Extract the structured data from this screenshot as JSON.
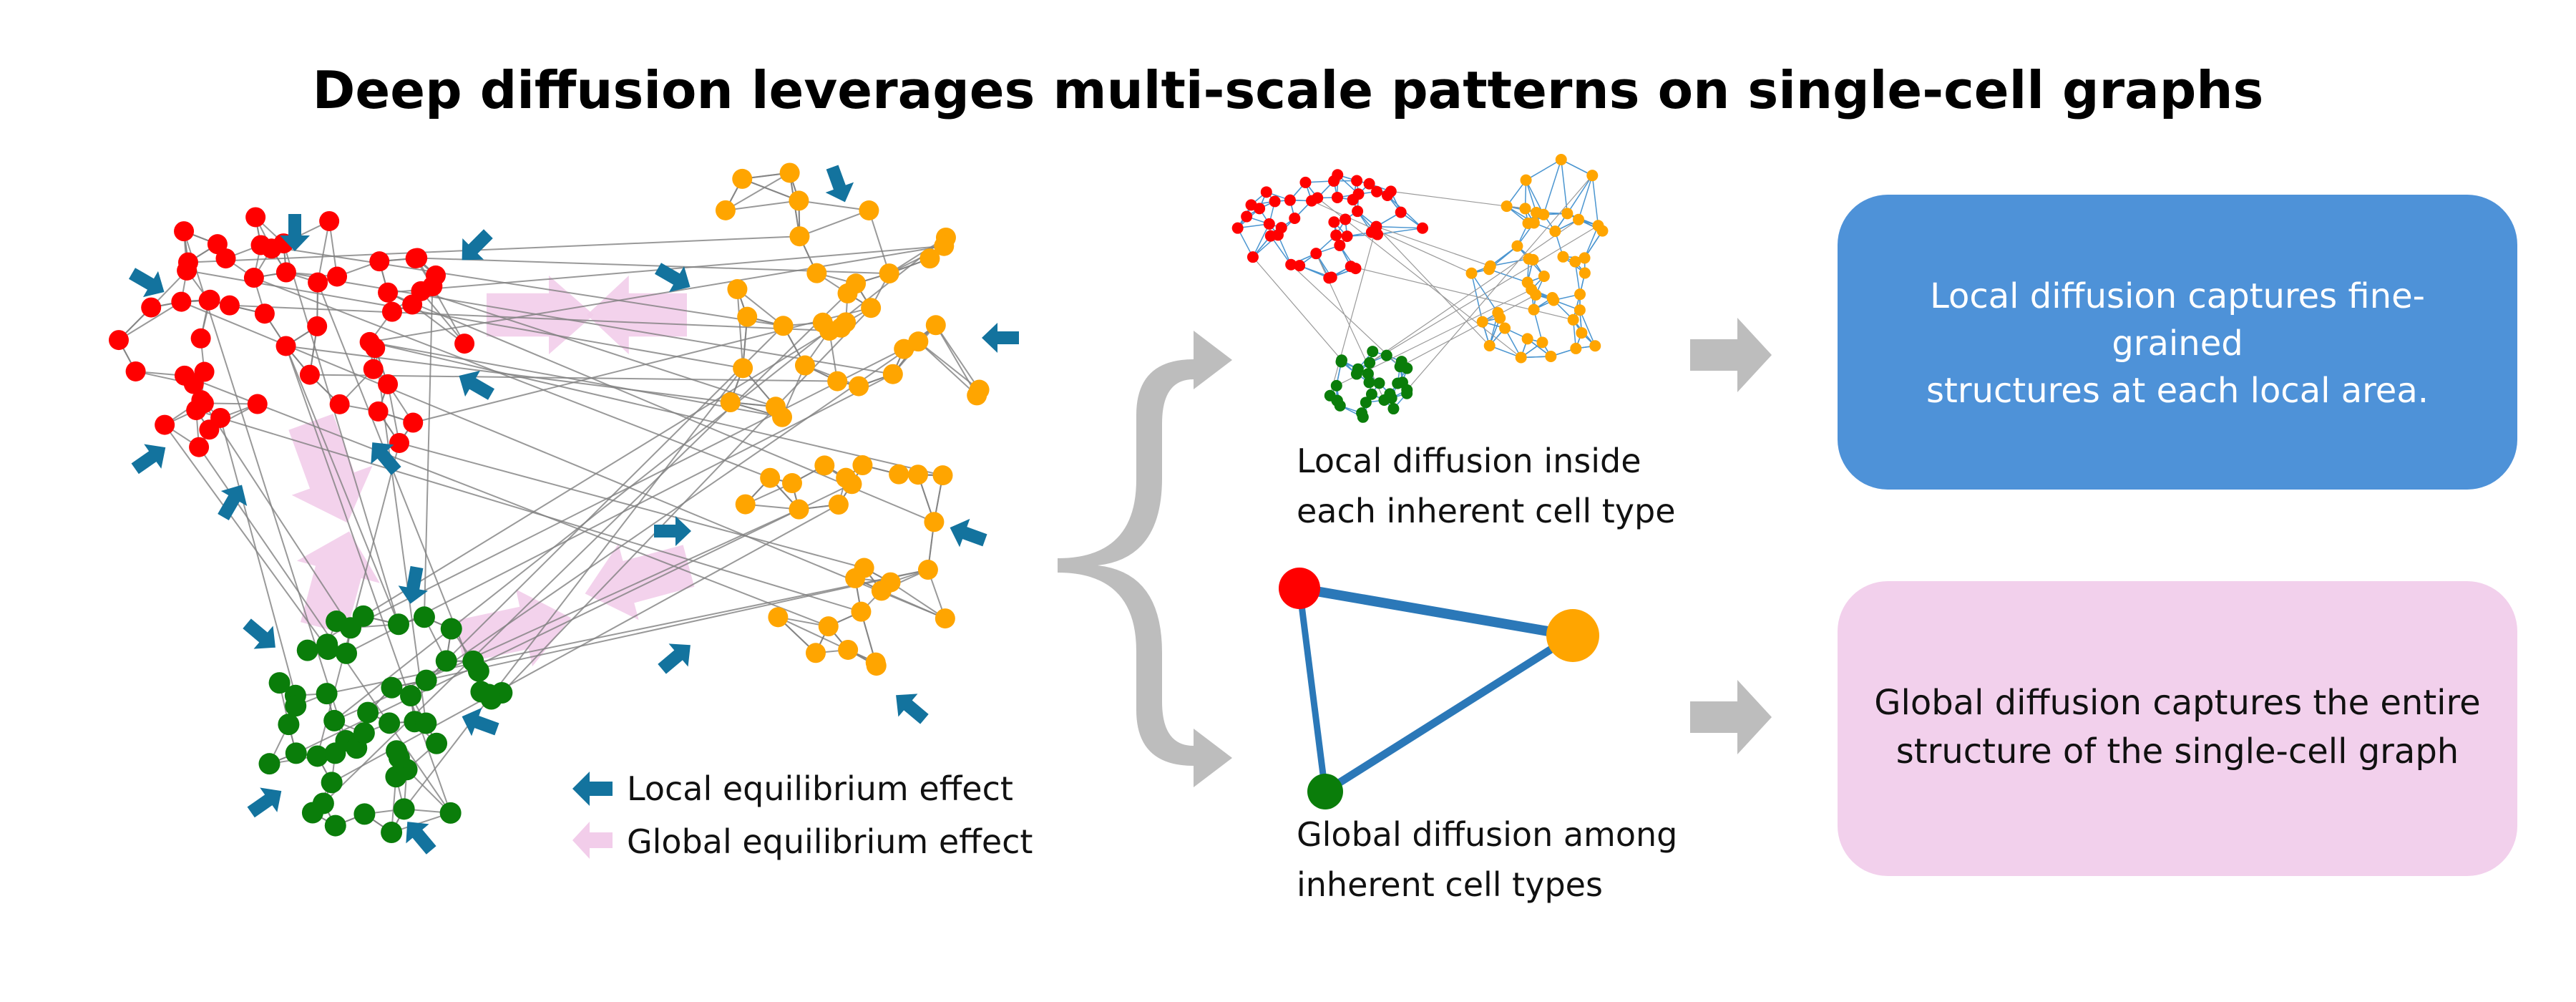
{
  "title": "Deep diffusion leverages multi-scale patterns on single-cell graphs",
  "legend": {
    "local": "Local equilibrium effect",
    "global": "Global equilibrium effect"
  },
  "captions": {
    "local_line1": "Local  diffusion inside",
    "local_line2": "each inherent cell type",
    "global_line1": "Global diffusion among",
    "global_line2": "inherent cell types"
  },
  "boxes": {
    "local_line1": "Local diffusion captures fine-",
    "local_line2": "grained",
    "local_line3": "structures at each local area.",
    "global_line1": "Global diffusion captures the entire",
    "global_line2": "structure of the single-cell graph"
  },
  "colors": {
    "red": "#ff0000",
    "orange": "#ffa500",
    "green": "#0a7d0a",
    "teal_arrow": "#13739e",
    "pink_arrow": "#f2cdea",
    "blue_box": "#4e92d8",
    "pink_box": "#f2d0ec",
    "gray": "#bdbdbd",
    "edge_blue": "#2b78b8"
  }
}
